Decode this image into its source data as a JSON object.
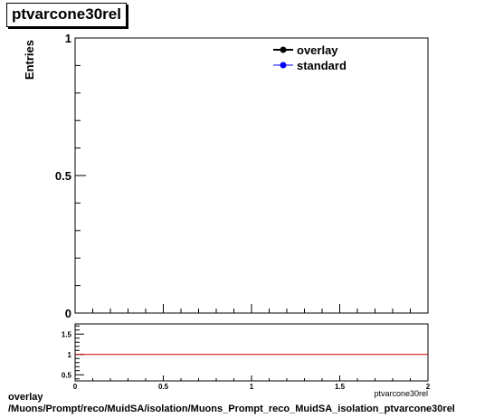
{
  "title": "ptvarcone30rel",
  "footer": {
    "line1": "overlay",
    "line2": "/Muons/Prompt/reco/MuidSA/isolation/Muons_Prompt_reco_MuidSA_isolation_ptvarcone30rel"
  },
  "chart_data": [
    {
      "type": "line",
      "title": "ptvarcone30rel",
      "ylabel": "Entries",
      "xlim": [
        0,
        2
      ],
      "ylim": [
        0,
        1
      ],
      "y_ticks": [
        "0",
        "0.5",
        "1"
      ],
      "legend_position": "top-right",
      "series": [
        {
          "name": "overlay",
          "color": "#000000",
          "x": [],
          "y": []
        },
        {
          "name": "standard",
          "color": "#0000ff",
          "x": [],
          "y": []
        }
      ]
    },
    {
      "type": "line",
      "xlabel": "ptvarcone30rel",
      "xlim": [
        0,
        2
      ],
      "ylim": [
        0.35,
        1.75
      ],
      "x_ticks": [
        "0",
        "0.5",
        "1",
        "1.5",
        "2"
      ],
      "y_ticks": [
        "0.5",
        "1",
        "1.5"
      ],
      "reference_line": {
        "y": 1,
        "color": "#cc0000"
      }
    }
  ]
}
